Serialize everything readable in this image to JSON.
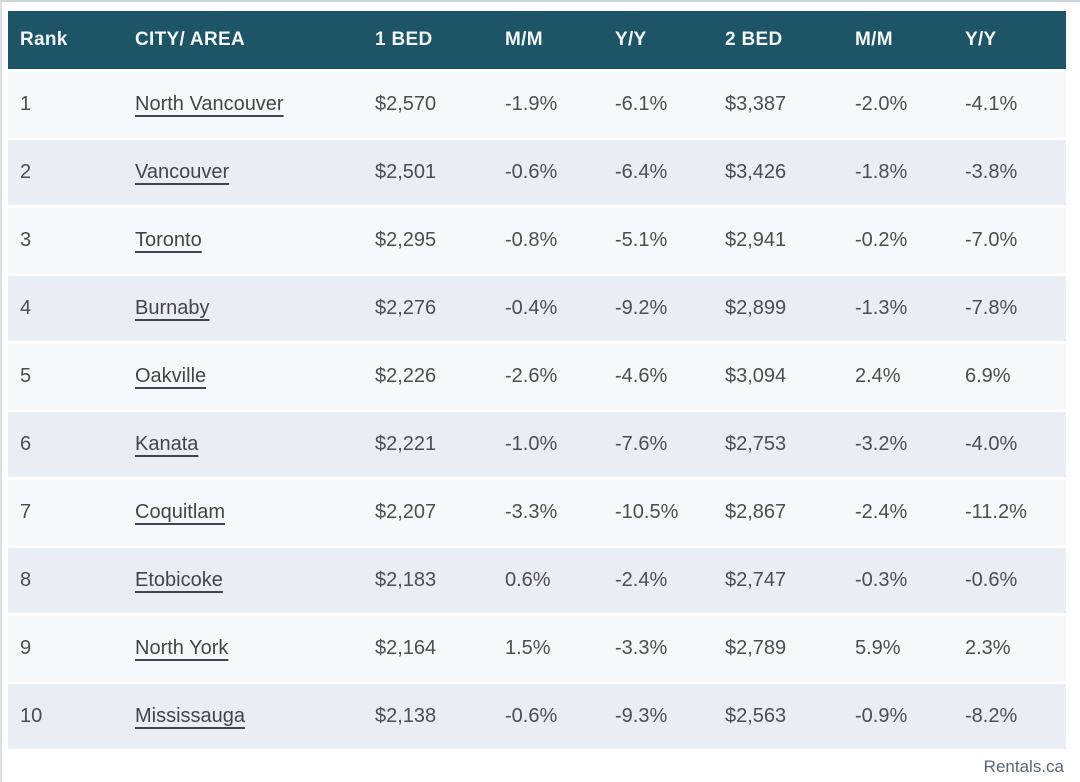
{
  "colors": {
    "header_background": "#1d5466",
    "header_text": "#f2f6f7",
    "row_odd_background": "#f7f8f9",
    "row_even_background": "#e9edf4",
    "body_text": "#4b4e52"
  },
  "table": {
    "columns": [
      {
        "key": "rank",
        "label": "Rank"
      },
      {
        "key": "city",
        "label": "CITY/ AREA"
      },
      {
        "key": "bed1",
        "label": "1 BED"
      },
      {
        "key": "mm1",
        "label": "M/M"
      },
      {
        "key": "yy1",
        "label": "Y/Y"
      },
      {
        "key": "bed2",
        "label": "2 BED"
      },
      {
        "key": "mm2",
        "label": "M/M"
      },
      {
        "key": "yy2",
        "label": "Y/Y"
      }
    ],
    "rows": [
      {
        "rank": "1",
        "city": "North Vancouver",
        "bed1": "$2,570",
        "mm1": "-1.9%",
        "yy1": "-6.1%",
        "bed2": "$3,387",
        "mm2": "-2.0%",
        "yy2": "-4.1%"
      },
      {
        "rank": "2",
        "city": "Vancouver",
        "bed1": "$2,501",
        "mm1": "-0.6%",
        "yy1": "-6.4%",
        "bed2": "$3,426",
        "mm2": "-1.8%",
        "yy2": "-3.8%"
      },
      {
        "rank": "3",
        "city": "Toronto",
        "bed1": "$2,295",
        "mm1": "-0.8%",
        "yy1": "-5.1%",
        "bed2": "$2,941",
        "mm2": "-0.2%",
        "yy2": "-7.0%"
      },
      {
        "rank": "4",
        "city": "Burnaby",
        "bed1": "$2,276",
        "mm1": "-0.4%",
        "yy1": "-9.2%",
        "bed2": "$2,899",
        "mm2": "-1.3%",
        "yy2": "-7.8%"
      },
      {
        "rank": "5",
        "city": "Oakville",
        "bed1": "$2,226",
        "mm1": "-2.6%",
        "yy1": "-4.6%",
        "bed2": "$3,094",
        "mm2": "2.4%",
        "yy2": "6.9%"
      },
      {
        "rank": "6",
        "city": "Kanata",
        "bed1": "$2,221",
        "mm1": "-1.0%",
        "yy1": "-7.6%",
        "bed2": "$2,753",
        "mm2": "-3.2%",
        "yy2": "-4.0%"
      },
      {
        "rank": "7",
        "city": "Coquitlam",
        "bed1": "$2,207",
        "mm1": "-3.3%",
        "yy1": "-10.5%",
        "bed2": "$2,867",
        "mm2": "-2.4%",
        "yy2": "-11.2%"
      },
      {
        "rank": "8",
        "city": "Etobicoke",
        "bed1": "$2,183",
        "mm1": "0.6%",
        "yy1": "-2.4%",
        "bed2": "$2,747",
        "mm2": "-0.3%",
        "yy2": "-0.6%"
      },
      {
        "rank": "9",
        "city": "North York",
        "bed1": "$2,164",
        "mm1": "1.5%",
        "yy1": "-3.3%",
        "bed2": "$2,789",
        "mm2": "5.9%",
        "yy2": "2.3%"
      },
      {
        "rank": "10",
        "city": "Mississauga",
        "bed1": "$2,138",
        "mm1": "-0.6%",
        "yy1": "-9.3%",
        "bed2": "$2,563",
        "mm2": "-0.9%",
        "yy2": "-8.2%"
      }
    ]
  },
  "footer": {
    "source_label": "Rentals.ca"
  }
}
